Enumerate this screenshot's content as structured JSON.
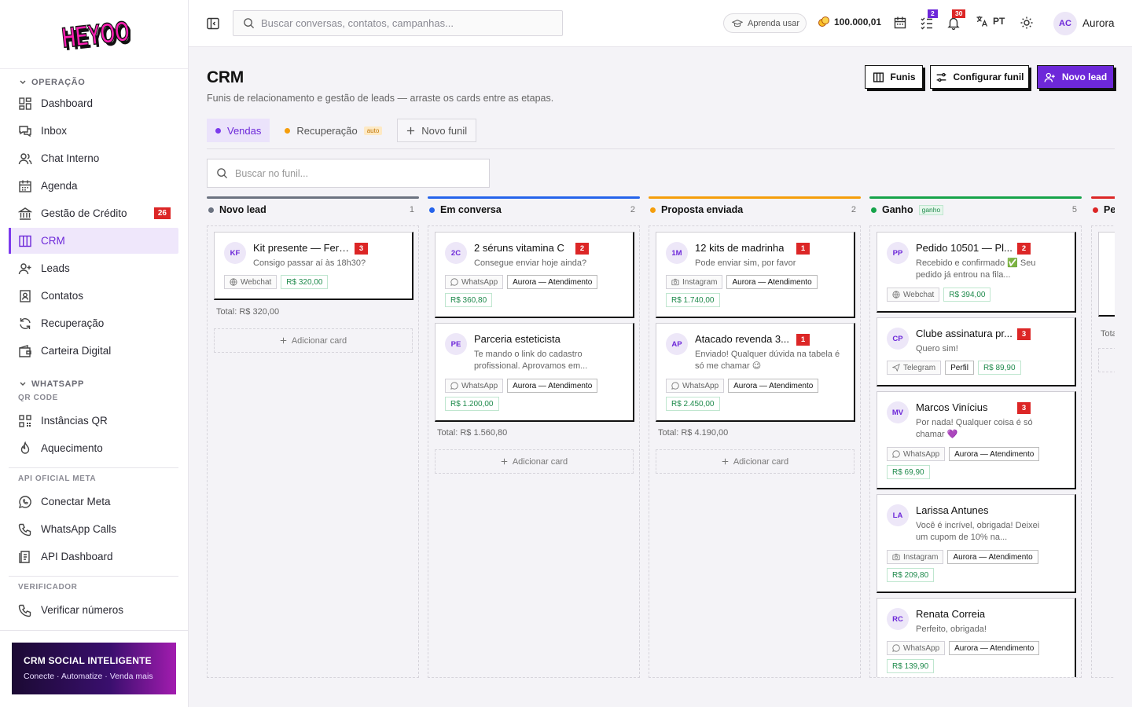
{
  "brand": {
    "logo_text": "HEYOO"
  },
  "sidebar": {
    "sections": [
      {
        "title": "OPERAÇÃO"
      },
      {
        "title": "WHATSAPP",
        "sub": "QR CODE"
      },
      {
        "title": "API OFICIAL META"
      },
      {
        "title": "VERIFICADOR"
      }
    ],
    "items": {
      "dashboard": "Dashboard",
      "inbox": "Inbox",
      "chat": "Chat Interno",
      "agenda": "Agenda",
      "credito": "Gestão de Crédito",
      "credito_badge": "26",
      "crm": "CRM",
      "leads": "Leads",
      "contatos": "Contatos",
      "recuperacao": "Recuperação",
      "carteira": "Carteira Digital",
      "instancias": "Instâncias QR",
      "aquecimento": "Aquecimento",
      "meta": "Conectar Meta",
      "calls": "WhatsApp Calls",
      "api": "API Dashboard",
      "verificar": "Verificar números"
    },
    "promo": {
      "title": "CRM SOCIAL INTELIGENTE",
      "subtitle": "Conecte · Automatize · Venda mais"
    }
  },
  "topbar": {
    "search_placeholder": "Buscar conversas, contatos, campanhas...",
    "learn": "Aprenda usar",
    "coins": "100.000,01",
    "tasks_count": "2",
    "notif_count": "30",
    "lang": "PT",
    "user_initials": "AC",
    "user_name": "Aurora"
  },
  "page": {
    "title": "CRM",
    "subtitle": "Funis de relacionamento e gestão de leads — arraste os cards entre as etapas.",
    "buttons": {
      "funis": "Funis",
      "config": "Configurar funil",
      "novo": "Novo lead"
    },
    "tabs": [
      {
        "label": "Vendas",
        "color": "#7c3aed"
      },
      {
        "label": "Recuperação",
        "color": "#f59e0b",
        "badge": "auto"
      },
      {
        "label": "Novo funil"
      }
    ],
    "funnel_search_placeholder": "Buscar no funil..."
  },
  "columns": [
    {
      "name": "Novo lead",
      "count": "1",
      "color": "#6b7280",
      "bar": "#6b7280",
      "total": "Total: R$ 320,00",
      "add": "Adicionar card",
      "cards": [
        {
          "initials": "KF",
          "title": "Kit presente — Fern...",
          "badge": "3",
          "msg": "Consigo passar aí às 18h30?",
          "channel": "Webchat",
          "price": "R$ 320,00"
        }
      ]
    },
    {
      "name": "Em conversa",
      "count": "2",
      "color": "#2563eb",
      "bar": "#2563eb",
      "total": "Total: R$ 1.560,80",
      "add": "Adicionar card",
      "cards": [
        {
          "initials": "2C",
          "title": "2 séruns vitamina C",
          "badge": "2",
          "msg": "Consegue enviar hoje ainda?",
          "channel": "WhatsApp",
          "owner": "Aurora — Atendimento",
          "price": "R$ 360,80"
        },
        {
          "initials": "PE",
          "title": "Parceria esteticista",
          "badge": "",
          "msg": "Te mando o link do cadastro profissional. Aprovamos em...",
          "channel": "WhatsApp",
          "owner": "Aurora — Atendimento",
          "price": "R$ 1.200,00"
        }
      ]
    },
    {
      "name": "Proposta enviada",
      "count": "2",
      "color": "#f59e0b",
      "bar": "#f59e0b",
      "total": "Total: R$ 4.190,00",
      "add": "Adicionar card",
      "cards": [
        {
          "initials": "1M",
          "title": "12 kits de madrinha",
          "badge": "1",
          "msg": "Pode enviar sim, por favor",
          "channel": "Instagram",
          "owner": "Aurora — Atendimento",
          "price": "R$ 1.740,00"
        },
        {
          "initials": "AP",
          "title": "Atacado revenda 3...",
          "badge": "1",
          "msg": "Enviado! Qualquer dúvida na tabela é só me chamar 😉",
          "channel": "WhatsApp",
          "owner": "Aurora — Atendimento",
          "price": "R$ 2.450,00"
        }
      ]
    },
    {
      "name": "Ganho",
      "count": "5",
      "color": "#16a34a",
      "bar": "#16a34a",
      "badge": "ganho",
      "cards": [
        {
          "initials": "PP",
          "title": "Pedido 10501 — Pl...",
          "badge": "2",
          "msg": "Recebido e confirmado ✅ Seu pedido já entrou na fila...",
          "channel": "Webchat",
          "price": "R$ 394,00"
        },
        {
          "initials": "CP",
          "title": "Clube assinatura pr...",
          "badge": "3",
          "msg": "Quero sim!",
          "channel": "Telegram",
          "owner": "Perfil",
          "price": "R$ 89,90"
        },
        {
          "initials": "MV",
          "title": "Marcos Vinícius",
          "badge": "3",
          "msg": "Por nada! Qualquer coisa é só chamar 💜",
          "channel": "WhatsApp",
          "owner": "Aurora — Atendimento",
          "price": "R$ 69,90"
        },
        {
          "initials": "LA",
          "title": "Larissa Antunes",
          "badge": "",
          "msg": "Você é incrível, obrigada! Deixei um cupom de 10% na...",
          "channel": "Instagram",
          "owner": "Aurora — Atendimento",
          "price": "R$ 209,80"
        },
        {
          "initials": "RC",
          "title": "Renata Correia",
          "badge": "",
          "msg": "Perfeito, obrigada!",
          "channel": "WhatsApp",
          "owner": "Aurora — Atendimento",
          "price": "R$ 139,90"
        }
      ]
    },
    {
      "name": "Pe",
      "color": "#dc2626",
      "bar": "#dc2626",
      "total": "Tota"
    }
  ]
}
